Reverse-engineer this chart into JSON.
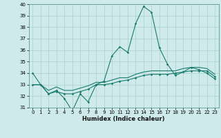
{
  "xlabel": "Humidex (Indice chaleur)",
  "x": [
    0,
    1,
    2,
    3,
    4,
    5,
    6,
    7,
    8,
    9,
    10,
    11,
    12,
    13,
    14,
    15,
    16,
    17,
    18,
    19,
    20,
    21,
    22,
    23
  ],
  "line1": [
    34,
    33,
    32.2,
    32.5,
    31.8,
    30.7,
    32.2,
    31.5,
    33.0,
    33.3,
    35.5,
    36.3,
    35.8,
    38.3,
    39.8,
    39.3,
    36.2,
    34.8,
    33.8,
    34.1,
    34.5,
    34.3,
    34.0,
    33.5
  ],
  "line2": [
    33.0,
    33.0,
    32.2,
    32.4,
    32.2,
    32.2,
    32.4,
    32.6,
    33.0,
    33.0,
    33.1,
    33.3,
    33.4,
    33.6,
    33.8,
    33.9,
    33.9,
    33.9,
    34.0,
    34.1,
    34.2,
    34.2,
    34.2,
    33.7
  ],
  "line3": [
    33.0,
    33.0,
    32.5,
    32.8,
    32.5,
    32.5,
    32.7,
    32.9,
    33.2,
    33.2,
    33.4,
    33.6,
    33.6,
    33.9,
    34.1,
    34.2,
    34.2,
    34.2,
    34.2,
    34.4,
    34.5,
    34.5,
    34.4,
    33.9
  ],
  "line_color": "#1a7a6e",
  "background_color": "#ceeaea",
  "grid_color": "#aacece",
  "ylim": [
    31,
    40
  ],
  "yticks": [
    31,
    32,
    33,
    34,
    35,
    36,
    37,
    38,
    39,
    40
  ],
  "xticks": [
    0,
    1,
    2,
    3,
    4,
    5,
    6,
    7,
    8,
    9,
    10,
    11,
    12,
    13,
    14,
    15,
    16,
    17,
    18,
    19,
    20,
    21,
    22,
    23
  ]
}
